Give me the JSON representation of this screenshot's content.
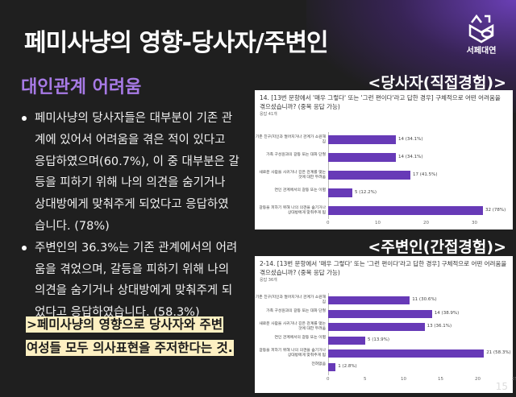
{
  "title": "페미사냥의 영향-당사자/주변인",
  "logo": {
    "text": "서페대연",
    "icon": "hexagon-logo-icon"
  },
  "subtitle": "대인관계 어려움",
  "bullets": [
    {
      "lines": [
        "페미사냥의 당사자들은 대부분이 기존 관",
        "계에 있어서 어려움을 겪은 적이 있다고",
        "응답하였으며(60.7%), 이 중 대부분은 갈",
        "등을 피하기 위해 나의 의견을 숨기거나",
        "상대방에게 맞춰주게 되었다고 응답하였",
        "습니다. (78%)"
      ]
    },
    {
      "lines": [
        "주변인의 36.3%는 기존 관계에서의 어려",
        "움을 겪었으며, 갈등을 피하기 위해 나의",
        "의견을 숨기거나 상대방에게 맞춰주게 되",
        "었다고 응답하였습니다. (58.3%)"
      ]
    }
  ],
  "conclusion": [
    ">페미사냥의 영향으로 당사자와 주변",
    "여성들 모두 의사표현을 주저한다는 것."
  ],
  "page_number": "15",
  "colors": {
    "bar": "#673ab7",
    "subtitle": "#a77ae6",
    "highlight": "#fdf0c2"
  },
  "chart_data": [
    {
      "type": "bar",
      "orientation": "horizontal",
      "heading": "<당사자(직접경험)>",
      "title": "14. [13번 문항에서 '매우 그렇다' 또는 '그런 편이다'라고 답한 경우] 구체적으로 어떤 어려움을 겪으셨습니까? (중복 응답 가능)",
      "subtitle": "응답 41개",
      "categories": [
        "기존 친구/지인과 멀어지거나 관계가 소원해짐",
        "가족 구성원과의 갈등 또는 대화 단절",
        "새로운 사람을 사귀거나 깊은 관계를 맺는 것에 대한 두려움",
        "연인 관계에서의 갈등 또는 이별",
        "갈등을 피하기 위해 나의 의견을 숨기거나 상대방에게 맞춰주게 됨"
      ],
      "values": [
        14,
        14,
        17,
        5,
        32
      ],
      "labels": [
        "14 (34.1%)",
        "14 (34.1%)",
        "17 (41.5%)",
        "5 (12.2%)",
        "32 (78%)"
      ],
      "ticks": [
        "0",
        "10",
        "20",
        "30"
      ],
      "xlim": [
        0,
        35
      ]
    },
    {
      "type": "bar",
      "orientation": "horizontal",
      "heading": "<주변인(간접경험)>",
      "title": "2-14. [13번 문항에서 '매우 그렇다' 또는 '그런 편이다'라고 답한 경우] 구체적으로 어떤 어려움을 겪으셨습니까? (중복 응답 가능)",
      "subtitle": "응답 36개",
      "categories": [
        "기존 친구/지인과 멀어지거나 관계가 소원해짐",
        "가족 구성원과의 갈등 또는 대화 단절",
        "새로운 사람을 사귀거나 깊은 관계를 맺는 것에 대한 두려움",
        "연인 관계에서의 갈등 또는 이별",
        "갈등을 피하기 위해 나의 의견을 숨기거나 상대방에게 맞춰주게 됨",
        "전혀없음"
      ],
      "values": [
        11,
        14,
        13,
        5,
        21,
        1
      ],
      "labels": [
        "11 (30.6%)",
        "14 (38.9%)",
        "13 (36.1%)",
        "5 (13.9%)",
        "21 (58.3%)",
        "1 (2.8%)"
      ],
      "ticks": [
        "0",
        "5",
        "10",
        "15",
        "20",
        "25"
      ],
      "xlim": [
        0,
        25
      ]
    }
  ]
}
